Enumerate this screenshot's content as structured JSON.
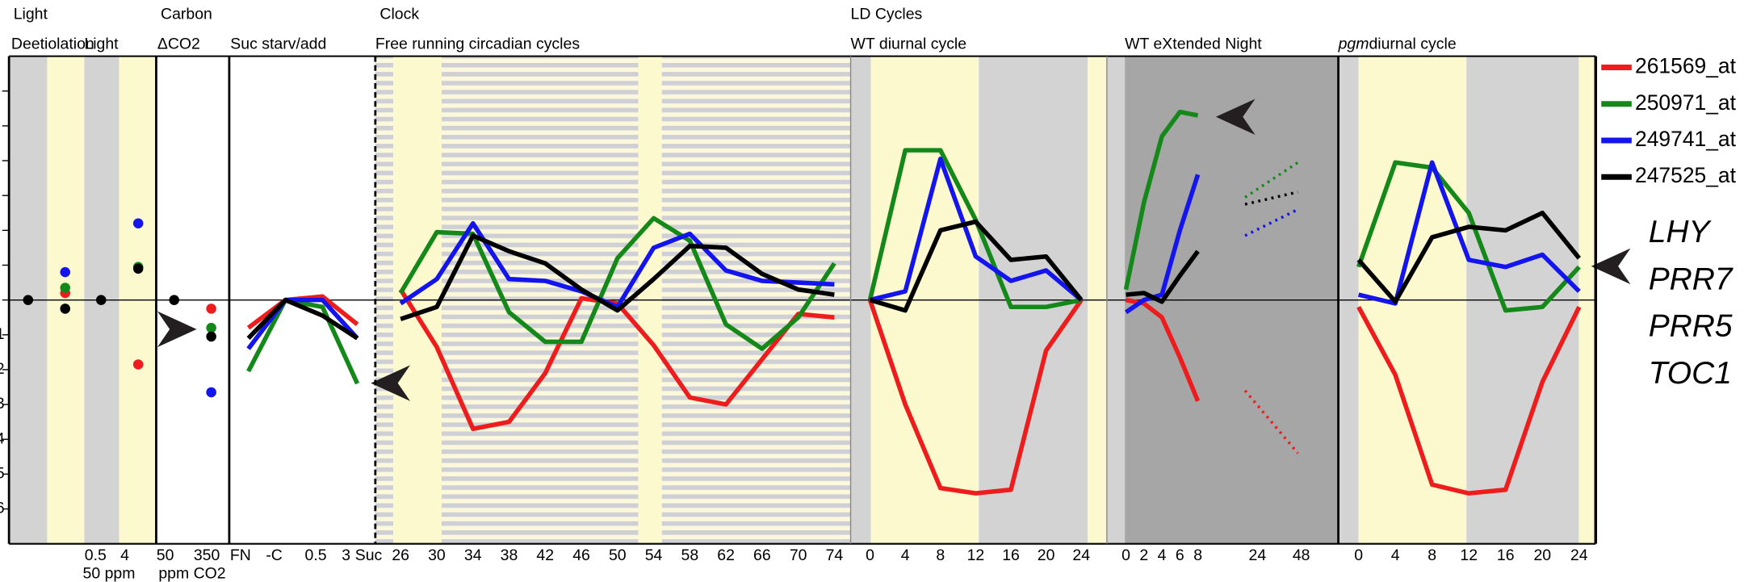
{
  "chart_data": {
    "type": "line",
    "ylim": [
      -7,
      7
    ],
    "yticks": [
      {
        "value": -6,
        "label": "6"
      },
      {
        "value": -5,
        "label": "5"
      },
      {
        "value": -4,
        "label": "4"
      },
      {
        "value": -3,
        "label": "3"
      },
      {
        "value": -2,
        "label": "2"
      },
      {
        "value": -1,
        "label": "1"
      },
      {
        "value": 0,
        "label": null
      },
      {
        "value": 1,
        "label": null
      },
      {
        "value": 2,
        "label": null
      },
      {
        "value": 3,
        "label": null
      },
      {
        "value": 4,
        "label": null
      },
      {
        "value": 5,
        "label": null
      },
      {
        "value": 6,
        "label": null
      }
    ],
    "groups": [
      "Light",
      "Carbon",
      "Clock",
      "LD Cycles"
    ],
    "series": [
      {
        "name": "261569_at",
        "color": "#ee1c1c"
      },
      {
        "name": "250971_at",
        "color": "#14891a"
      },
      {
        "name": "249741_at",
        "color": "#1414ee"
      },
      {
        "name": "247525_at",
        "color": "#000000"
      }
    ],
    "panels": [
      {
        "type": "scatter",
        "title": "Deetiolation",
        "categories": [
          null,
          null
        ],
        "values": [
          [
            null,
            0.2
          ],
          [
            null,
            0.35
          ],
          [
            null,
            0.8
          ],
          [
            0,
            -0.25
          ]
        ]
      },
      {
        "type": "scatter",
        "title": "Light",
        "categories": [
          "0.5",
          "4"
        ],
        "xlabel": "50 ppm",
        "values": [
          [
            null,
            -1.85
          ],
          [
            null,
            0.95
          ],
          [
            null,
            2.2
          ],
          [
            0,
            0.9
          ]
        ]
      },
      {
        "type": "scatter",
        "title": "ΔCO2",
        "categories": [
          "50",
          "350"
        ],
        "xlabel": "ppm CO2",
        "values": [
          [
            null,
            -0.25
          ],
          [
            null,
            -0.8
          ],
          [
            null,
            -2.65
          ],
          [
            0,
            -1.05
          ]
        ]
      },
      {
        "type": "line",
        "title": "Suc starv/add",
        "categories": [
          "FN",
          "-C",
          "0.5",
          "3",
          "Suc"
        ],
        "values": [
          [
            -0.8,
            0,
            0.1,
            -0.7,
            null
          ],
          [
            -2.05,
            0,
            -0.2,
            -2.4,
            null
          ],
          [
            -1.4,
            0,
            0,
            -1.1,
            null
          ],
          [
            -1.1,
            0,
            -0.45,
            -1.1,
            null
          ]
        ]
      },
      {
        "type": "line",
        "title": "Free running circadian cycles",
        "x": [
          26,
          30,
          34,
          38,
          42,
          46,
          50,
          54,
          58,
          62,
          66,
          70,
          74
        ],
        "xlim": [
          23.2,
          75.8
        ],
        "xticks": [
          26,
          30,
          34,
          38,
          42,
          46,
          50,
          54,
          58,
          62,
          66,
          70,
          74
        ],
        "values": [
          [
            0.3,
            -1.35,
            -3.7,
            -3.5,
            -2.1,
            0.05,
            -0.1,
            -1.3,
            -2.8,
            -3.0,
            -1.7,
            -0.4,
            -0.5
          ],
          [
            0.2,
            1.95,
            1.9,
            -0.35,
            -1.2,
            -1.2,
            1.2,
            2.35,
            1.7,
            -0.7,
            -1.4,
            -0.5,
            1.05
          ],
          [
            -0.1,
            0.6,
            2.2,
            0.6,
            0.55,
            0.25,
            -0.2,
            1.5,
            1.9,
            0.85,
            0.55,
            0.5,
            0.45
          ],
          [
            -0.55,
            -0.2,
            1.85,
            1.4,
            1.05,
            0.3,
            -0.3,
            0.6,
            1.55,
            1.5,
            0.75,
            0.3,
            0.15
          ]
        ]
      },
      {
        "type": "line",
        "title": "WT diurnal cycle",
        "x": [
          0,
          4,
          8,
          12,
          16,
          20,
          24
        ],
        "xlim": [
          -2.2,
          26.9
        ],
        "xticks": [
          0,
          4,
          8,
          12,
          16,
          20,
          24
        ],
        "values": [
          [
            0,
            -3.0,
            -5.4,
            -5.55,
            -5.45,
            -1.45,
            0
          ],
          [
            0,
            4.3,
            4.3,
            2.3,
            -0.2,
            -0.2,
            0
          ],
          [
            0,
            0.25,
            4.05,
            1.25,
            0.55,
            0.85,
            0
          ],
          [
            0,
            -0.3,
            2.0,
            2.25,
            1.15,
            1.25,
            0
          ]
        ]
      },
      {
        "type": "line",
        "title": "WT eXtended Night",
        "categories": [
          "0",
          "2",
          "4",
          "6",
          "8",
          "24",
          "48"
        ],
        "segment_styles": [
          "solid",
          "solid",
          "solid",
          "solid",
          "none",
          "dotted"
        ],
        "values": [
          [
            0,
            -0.1,
            -0.5,
            -1.65,
            -2.9,
            -2.6,
            -4.4
          ],
          [
            0.3,
            2.8,
            4.7,
            5.4,
            5.3,
            2.95,
            3.95
          ],
          [
            -0.35,
            0,
            0.15,
            2.0,
            3.6,
            1.85,
            2.6
          ],
          [
            0.15,
            0.2,
            -0.05,
            0.7,
            1.4,
            2.75,
            3.1
          ]
        ]
      },
      {
        "type": "line",
        "title_italic": "pgm",
        "title": "diurnal cycle",
        "x": [
          0,
          4,
          8,
          12,
          16,
          20,
          24
        ],
        "xlim": [
          -2.2,
          25.8
        ],
        "xticks": [
          0,
          4,
          8,
          12,
          16,
          20,
          24
        ],
        "values": [
          [
            -0.2,
            -2.15,
            -5.3,
            -5.55,
            -5.45,
            -2.35,
            -0.2
          ],
          [
            0.95,
            3.95,
            3.8,
            2.5,
            -0.3,
            -0.2,
            0.95
          ],
          [
            0.15,
            -0.1,
            3.95,
            1.15,
            0.95,
            1.3,
            0.25
          ],
          [
            1.15,
            -0.05,
            1.8,
            2.1,
            2.0,
            2.5,
            1.2
          ]
        ]
      }
    ]
  },
  "gene_labels": [
    {
      "text": "LHY",
      "color": "#e8141c"
    },
    {
      "text": "PRR7",
      "color": "#1aa050"
    },
    {
      "text": "PRR5",
      "color": "#2e3192"
    },
    {
      "text": "TOC1",
      "color": "#231f20"
    }
  ]
}
